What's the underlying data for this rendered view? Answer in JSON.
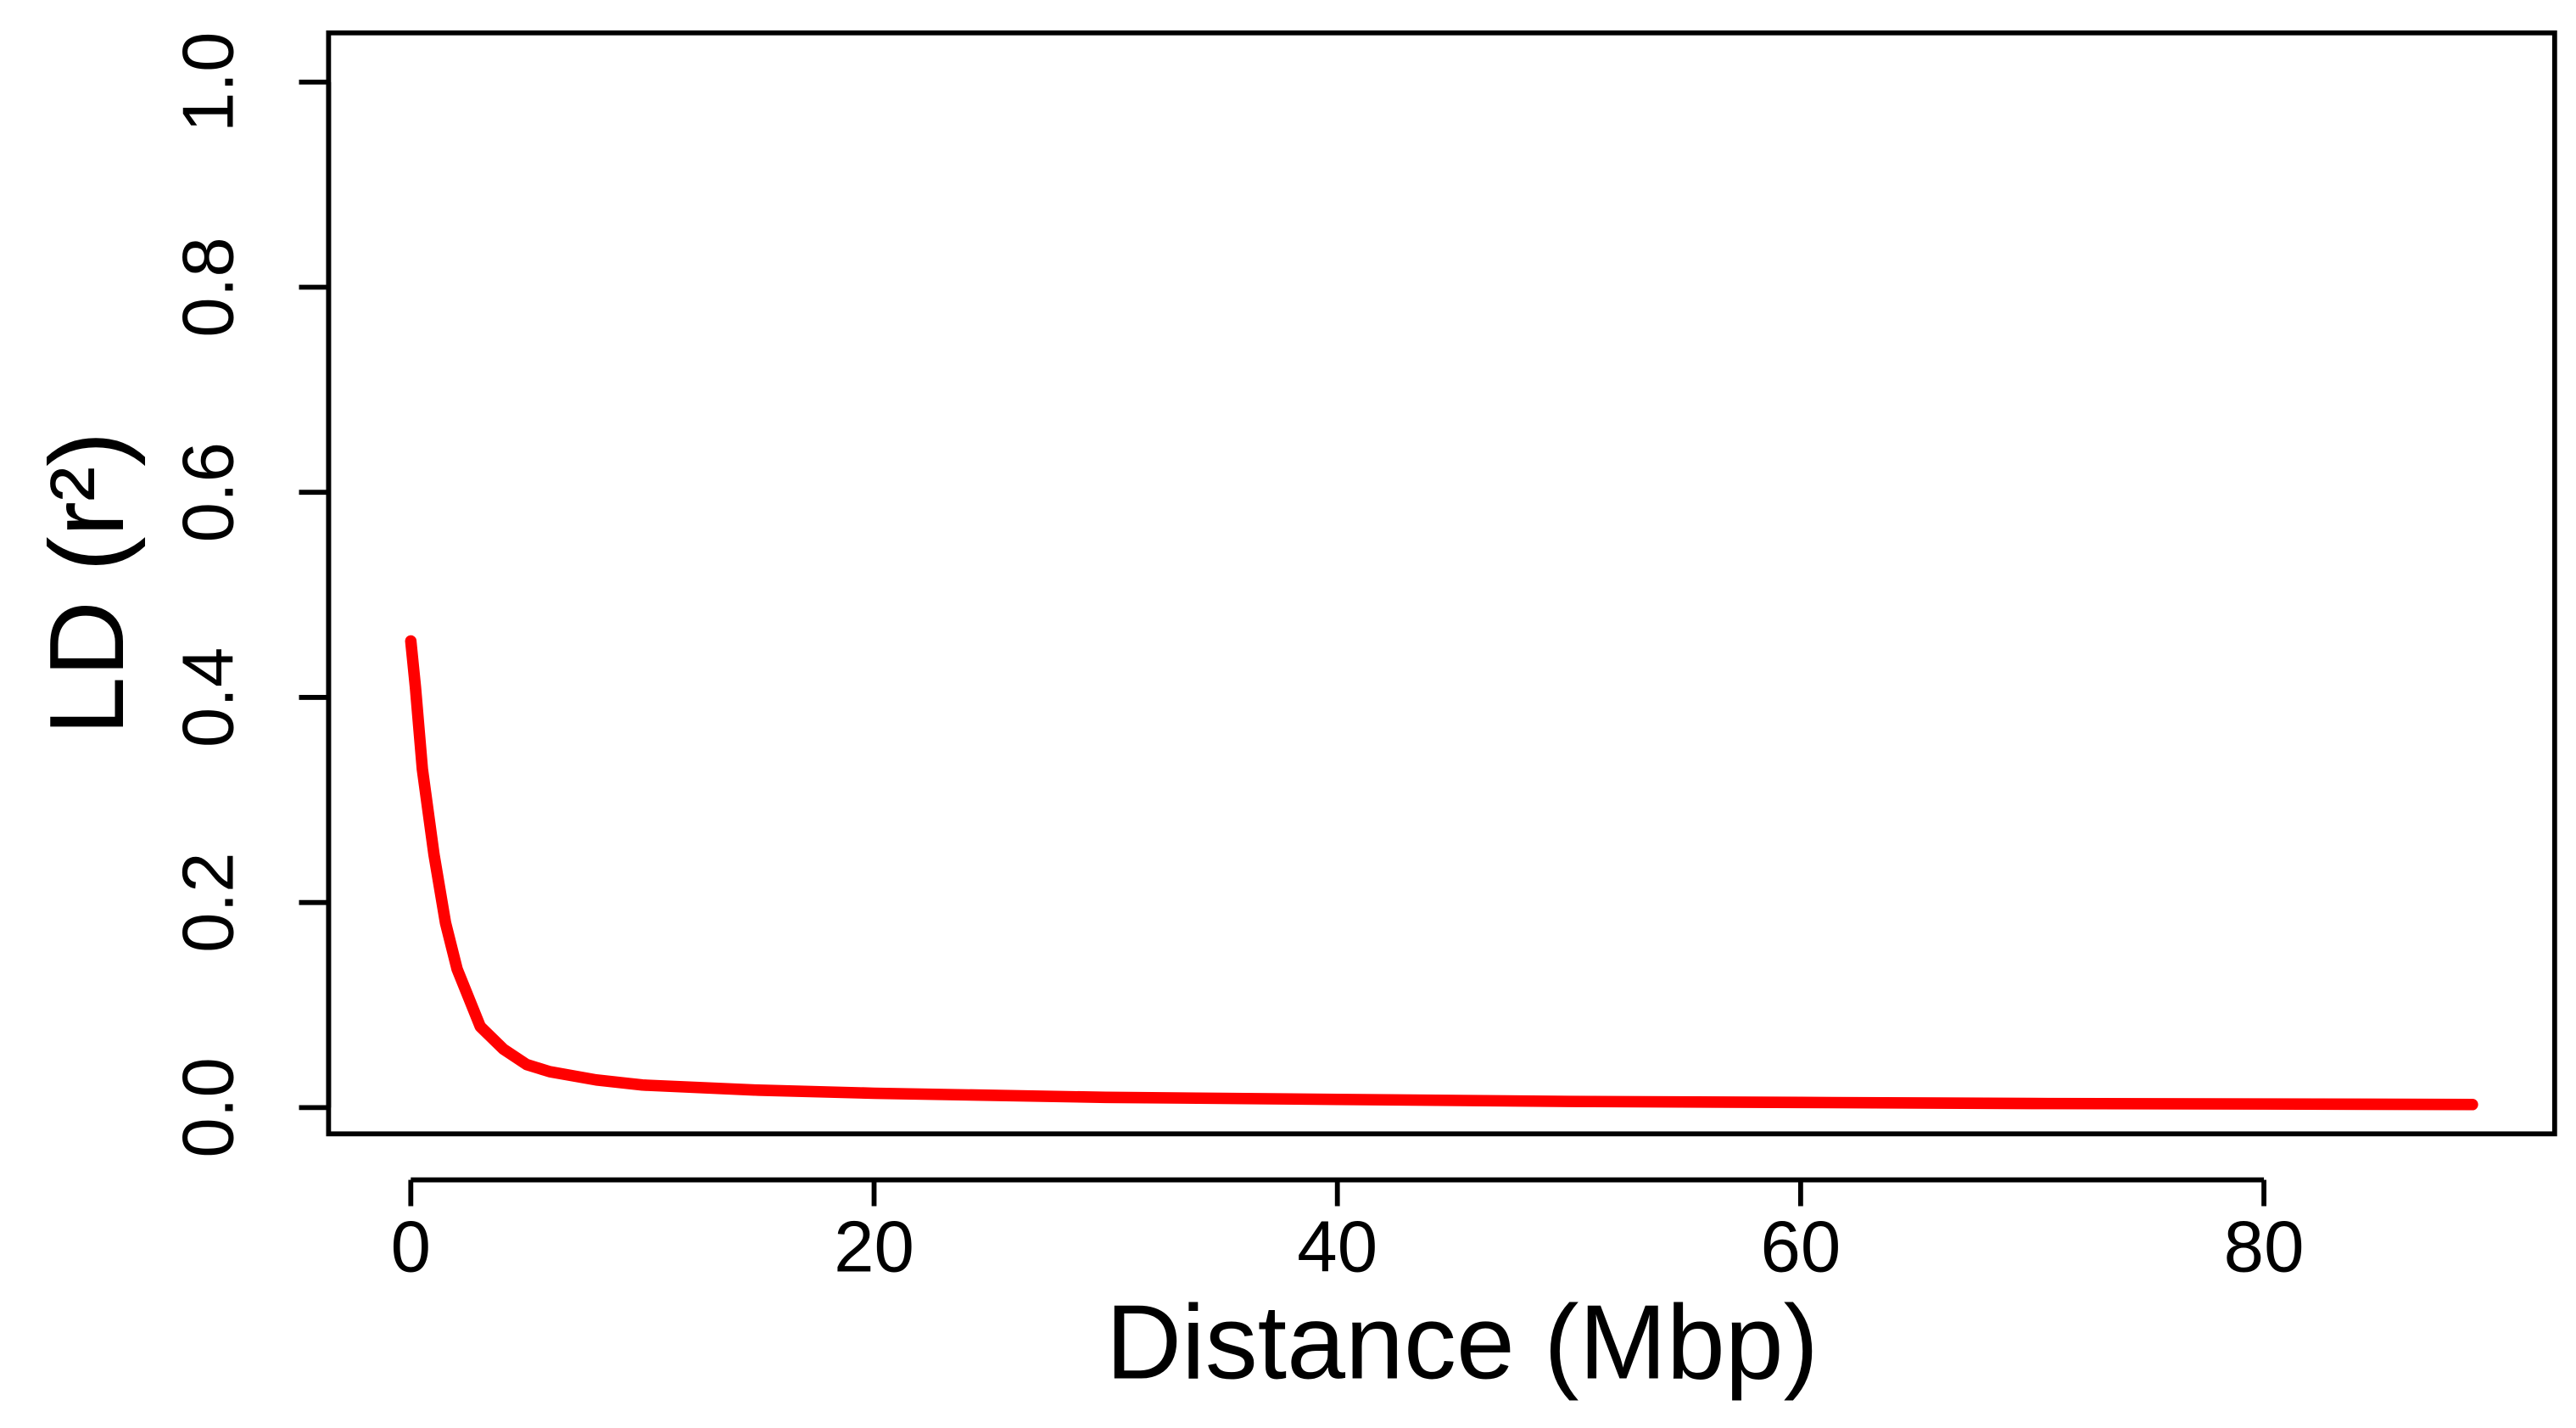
{
  "chart_data": {
    "type": "line",
    "xlabel": "Distance (Mbp)",
    "ylabel": "LD (r²)",
    "x": [
      0,
      0.2,
      0.5,
      1,
      1.5,
      2,
      3,
      4,
      5,
      6,
      8,
      10,
      15,
      20,
      30,
      40,
      50,
      60,
      70,
      80,
      89
    ],
    "values": [
      0.455,
      0.41,
      0.33,
      0.247,
      0.18,
      0.135,
      0.079,
      0.057,
      0.042,
      0.035,
      0.027,
      0.022,
      0.017,
      0.014,
      0.01,
      0.008,
      0.006,
      0.005,
      0.004,
      0.0035,
      0.003
    ],
    "color": "#ff0000",
    "xlim": [
      -3.55,
      92.55
    ],
    "ylim": [
      -0.0256,
      1.048
    ],
    "xticks": [
      0,
      20,
      40,
      60,
      80
    ],
    "yticks": [
      {
        "value": 0,
        "label": "0.0"
      },
      0.2,
      0.4,
      0.6,
      0.8,
      {
        "value": 1,
        "label": "1.0"
      }
    ]
  }
}
